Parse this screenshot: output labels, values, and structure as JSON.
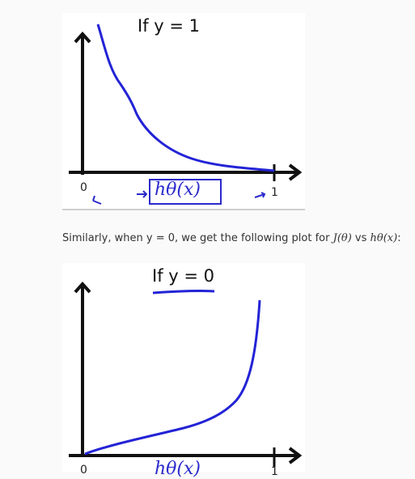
{
  "figures": [
    {
      "title": "If y = 1",
      "tick_zero": "0",
      "tick_one": "1",
      "x_annotation": "hθ(x)"
    },
    {
      "title": "If y = 0",
      "tick_zero": "0",
      "tick_one": "1",
      "x_annotation": "hθ(x)"
    }
  ],
  "caption": {
    "prefix": "Similarly, when y = 0, we get the following plot for ",
    "j": "J(θ)",
    "vs": " vs ",
    "h": "hθ(x)",
    "suffix": ":"
  },
  "colors": {
    "curve": "#2323d6",
    "axis": "#111111",
    "annotation": "#2a2acc"
  }
}
